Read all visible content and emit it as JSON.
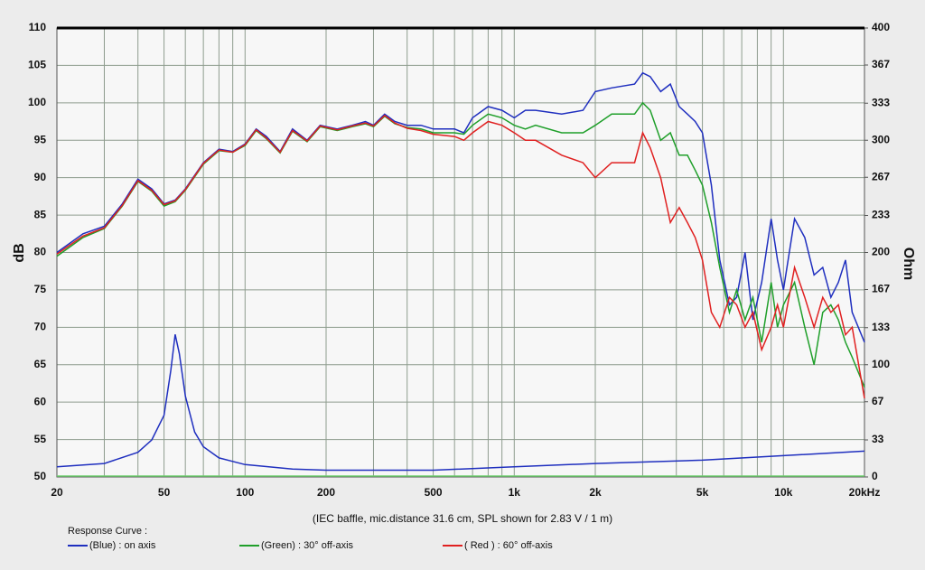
{
  "chart_data": {
    "type": "line",
    "ylabel": "dB",
    "y2label": "Ohm",
    "xlabel": "(IEC baffle, mic.distance 31.6 cm, SPL shown for 2.83 V / 1 m)",
    "legend_title": "Response Curve :",
    "log_x": true,
    "grid": true,
    "xlim": [
      20,
      20000
    ],
    "ylim": [
      50,
      110
    ],
    "y2lim": [
      0,
      400
    ],
    "xticks": [
      20,
      50,
      100,
      200,
      500,
      {
        "value": 1000,
        "label": "1k"
      },
      {
        "value": 2000,
        "label": "2k"
      },
      {
        "value": 5000,
        "label": "5k"
      },
      {
        "value": 10000,
        "label": "10k"
      },
      {
        "value": 20000,
        "label": "20kHz"
      }
    ],
    "x_minor_grid": [
      30,
      40,
      60,
      70,
      80,
      90,
      300,
      400,
      600,
      700,
      800,
      900,
      3000,
      4000,
      6000,
      7000,
      8000,
      9000
    ],
    "yticks": [
      50,
      55,
      60,
      65,
      70,
      75,
      80,
      85,
      90,
      95,
      100,
      105,
      110
    ],
    "y2ticks": [
      0,
      33,
      67,
      100,
      133,
      167,
      200,
      233,
      267,
      300,
      333,
      367,
      400
    ],
    "x": [
      20,
      25,
      30,
      35,
      40,
      45,
      50,
      55,
      60,
      70,
      80,
      90,
      100,
      110,
      120,
      135,
      150,
      170,
      190,
      220,
      250,
      280,
      300,
      330,
      360,
      400,
      450,
      500,
      600,
      650,
      700,
      800,
      900,
      1000,
      1100,
      1200,
      1500,
      1800,
      2000,
      2300,
      2800,
      3000,
      3200,
      3500,
      3800,
      4100,
      4400,
      4700,
      5000,
      5400,
      5800,
      6300,
      6700,
      7200,
      7700,
      8300,
      9000,
      9500,
      10000,
      11000,
      12000,
      13000,
      14000,
      15000,
      16000,
      17000,
      18000,
      20000
    ],
    "series": [
      {
        "name": "(Blue)  : on axis",
        "color": "#1f2fbf",
        "values": [
          80,
          82.5,
          83.5,
          86.5,
          89.8,
          88.5,
          86.5,
          87,
          88.5,
          92,
          93.8,
          93.5,
          94.5,
          96.5,
          95.5,
          93.5,
          96.5,
          95,
          97,
          96.5,
          97,
          97.5,
          97,
          98.5,
          97.5,
          97,
          97,
          96.5,
          96.5,
          96,
          98,
          99.5,
          99,
          98,
          99,
          99,
          98.5,
          99,
          101.5,
          102,
          102.5,
          104,
          103.5,
          101.5,
          102.5,
          99.5,
          98.5,
          97.5,
          96,
          89,
          79,
          73,
          74,
          80,
          71,
          76,
          84.5,
          79,
          75,
          84.5,
          82,
          77,
          78,
          74,
          76,
          79,
          72,
          68
        ]
      },
      {
        "name": "(Green) : 30° off-axis",
        "color": "#1f9f2a",
        "values": [
          79.5,
          82,
          83.2,
          86.2,
          89.5,
          88.2,
          86.2,
          86.8,
          88.3,
          91.8,
          93.6,
          93.4,
          94.3,
          96.3,
          95.2,
          93.3,
          96.2,
          94.8,
          96.8,
          96.3,
          96.8,
          97.2,
          96.8,
          98.2,
          97.2,
          96.7,
          96.5,
          96,
          96,
          95.8,
          97,
          98.5,
          98,
          97,
          96.5,
          97,
          96,
          96,
          97,
          98.5,
          98.5,
          100,
          99,
          95,
          96,
          93,
          93,
          91,
          89,
          84,
          78,
          72,
          75,
          71,
          74,
          68,
          76,
          70,
          73,
          76,
          70,
          65,
          72,
          73,
          71,
          68,
          66,
          62
        ]
      },
      {
        "name": "( Red ) : 60° off-axis",
        "color": "#e02020",
        "values": [
          79.8,
          82.2,
          83.3,
          86.3,
          89.6,
          88.3,
          86.4,
          86.9,
          88.4,
          91.9,
          93.7,
          93.4,
          94.4,
          96.4,
          95.3,
          93.4,
          96.3,
          94.9,
          96.9,
          96.4,
          96.9,
          97.3,
          96.9,
          98.3,
          97.3,
          96.6,
          96.3,
          95.8,
          95.5,
          95,
          96,
          97.5,
          97,
          96,
          95,
          95,
          93,
          92,
          90,
          92,
          92,
          96,
          94,
          90,
          84,
          86,
          84,
          82,
          79,
          72,
          70,
          74,
          73,
          70,
          72,
          67,
          70,
          73,
          70,
          78,
          74,
          70,
          74,
          72,
          73,
          69,
          70,
          60.5
        ]
      },
      {
        "color": "#1f2fbf",
        "axis": "y2",
        "x": [
          20,
          30,
          40,
          45,
          50,
          53,
          55,
          57,
          60,
          65,
          70,
          80,
          100,
          150,
          200,
          500,
          1000,
          2000,
          5000,
          10000,
          20000
        ],
        "values": [
          9,
          12,
          22,
          33,
          55,
          95,
          127,
          110,
          72,
          40,
          27,
          17,
          11,
          7,
          6,
          6,
          9,
          12,
          15,
          19,
          23
        ]
      }
    ]
  }
}
